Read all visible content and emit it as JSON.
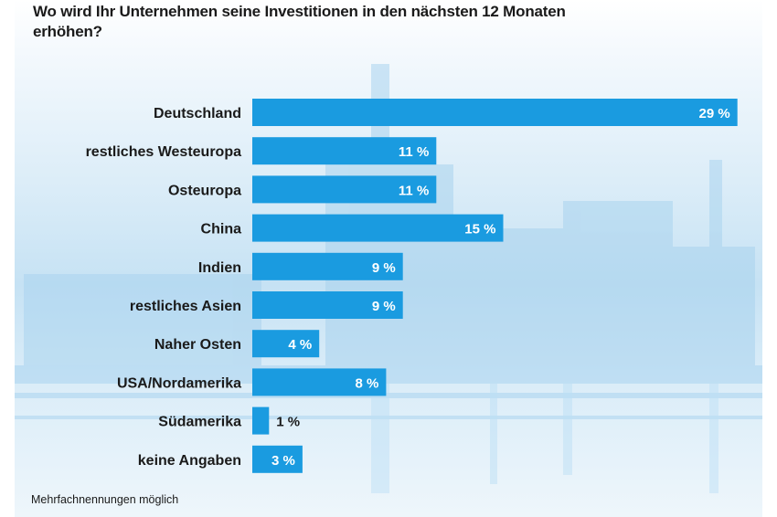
{
  "chart_data": {
    "type": "bar",
    "orientation": "horizontal",
    "title": "Wo wird Ihr Unternehmen seine Investitionen in den nächsten 12 Monaten erhöhen?",
    "categories": [
      "Deutschland",
      "restliches Westeuropa",
      "Osteuropa",
      "China",
      "Indien",
      "restliches Asien",
      "Naher Osten",
      "USA/Nordamerika",
      "Südamerika",
      "keine Angaben"
    ],
    "values": [
      29,
      11,
      11,
      15,
      9,
      9,
      4,
      8,
      1,
      3
    ],
    "value_labels": [
      "29 %",
      "11 %",
      "11 %",
      "15 %",
      "9 %",
      "9 %",
      "4 %",
      "8 %",
      "1 %",
      "3 %"
    ],
    "unit": "%",
    "bar_color": "#1a9be0",
    "footnote": "Mehrfachnennungen möglich"
  }
}
